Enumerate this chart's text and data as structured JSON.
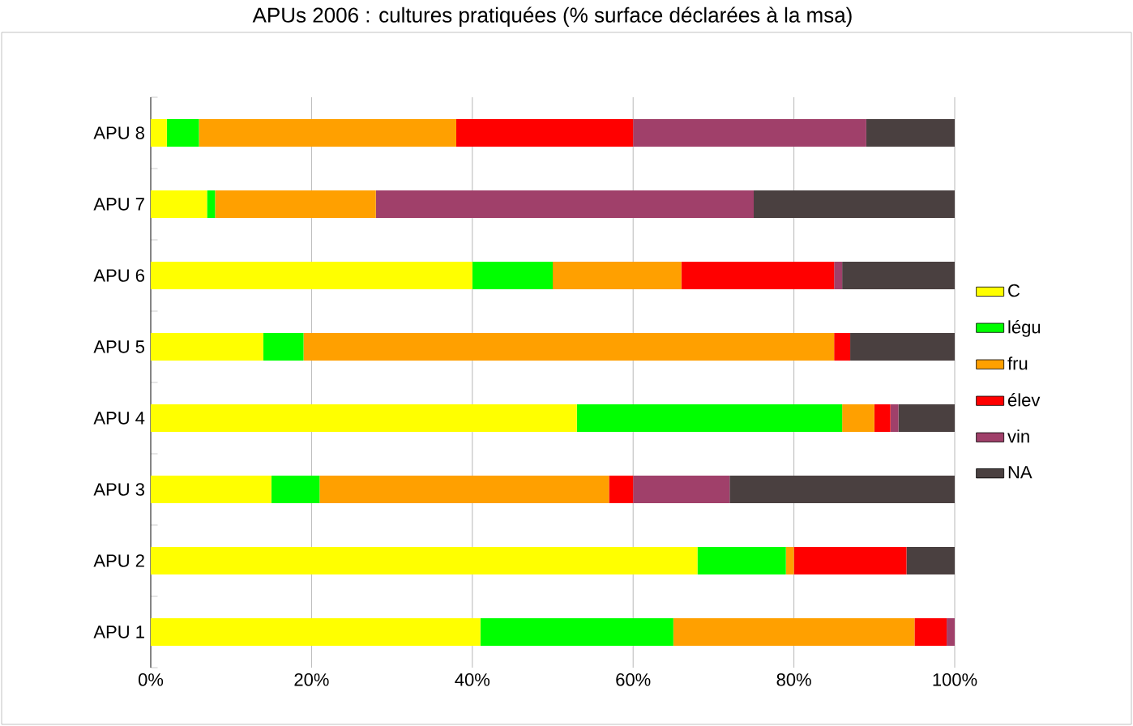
{
  "chart_data": {
    "type": "bar",
    "orientation": "horizontal",
    "stacked": true,
    "title": "APUs 2006 : cultures pratiquées (% surface déclarées à la msa)",
    "categories": [
      "APU 8",
      "APU 7",
      "APU 6",
      "APU 5",
      "APU 4",
      "APU 3",
      "APU 2",
      "APU 1"
    ],
    "series": [
      {
        "name": "C",
        "color": "#ffff00",
        "values": [
          2,
          7,
          40,
          14,
          53,
          15,
          68,
          41
        ]
      },
      {
        "name": "légu",
        "color": "#00ff00",
        "values": [
          4,
          1,
          10,
          5,
          33,
          6,
          11,
          24
        ]
      },
      {
        "name": "fru",
        "color": "#ffa000",
        "values": [
          32,
          20,
          16,
          66,
          4,
          36,
          1,
          30
        ]
      },
      {
        "name": "élev",
        "color": "#ff0000",
        "values": [
          22,
          0,
          19,
          2,
          2,
          3,
          14,
          4
        ]
      },
      {
        "name": "vin",
        "color": "#a0406a",
        "values": [
          29,
          47,
          1,
          0,
          1,
          12,
          0,
          1
        ]
      },
      {
        "name": "NA",
        "color": "#4a4040",
        "values": [
          11,
          25,
          14,
          13,
          7,
          28,
          6,
          0
        ]
      }
    ],
    "xlim": [
      0,
      100
    ],
    "xticks": [
      {
        "value": 0,
        "label": "0%"
      },
      {
        "value": 20,
        "label": "20%"
      },
      {
        "value": 40,
        "label": "40%"
      },
      {
        "value": 60,
        "label": "60%"
      },
      {
        "value": 80,
        "label": "80%"
      },
      {
        "value": 100,
        "label": "100%"
      }
    ],
    "grid": "x",
    "legend": "right"
  }
}
